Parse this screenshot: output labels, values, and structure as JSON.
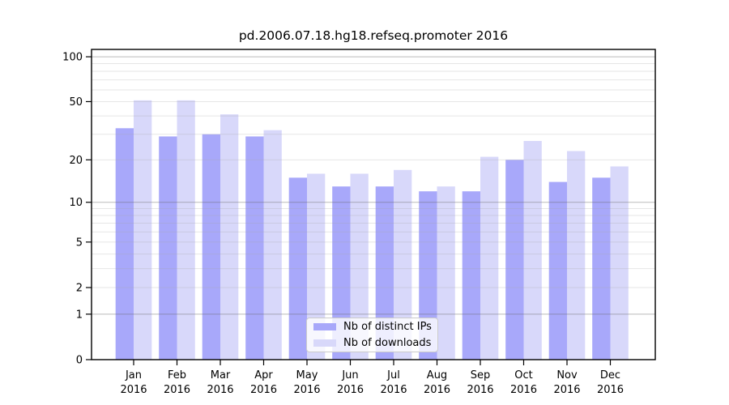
{
  "chart_data": {
    "type": "bar",
    "title": "pd.2006.07.18.hg18.refseq.promoter 2016",
    "x_months": [
      "Jan",
      "Feb",
      "Mar",
      "Apr",
      "May",
      "Jun",
      "Jul",
      "Aug",
      "Sep",
      "Oct",
      "Nov",
      "Dec"
    ],
    "x_year": "2016",
    "categories": [
      "Jan 2016",
      "Feb 2016",
      "Mar 2016",
      "Apr 2016",
      "May 2016",
      "Jun 2016",
      "Jul 2016",
      "Aug 2016",
      "Sep 2016",
      "Oct 2016",
      "Nov 2016",
      "Dec 2016"
    ],
    "series": [
      {
        "name": "Nb of distinct IPs",
        "color": "#a8a8fa",
        "values": [
          33,
          29,
          30,
          29,
          15,
          13,
          13,
          12,
          12,
          20,
          14,
          15
        ]
      },
      {
        "name": "Nb of downloads",
        "color": "#d8d8fa",
        "values": [
          51,
          51,
          41,
          32,
          16,
          16,
          17,
          13,
          21,
          27,
          23,
          18
        ]
      }
    ],
    "y_scale": "log10(1+x)",
    "y_ticks": [
      0,
      1,
      2,
      5,
      10,
      20,
      50,
      100
    ],
    "y_major_gridlines": [
      1,
      10,
      100
    ],
    "y_minor_gridlines": [
      2,
      3,
      4,
      5,
      6,
      7,
      8,
      9,
      20,
      30,
      40,
      50,
      60,
      70,
      80,
      90
    ],
    "ylim": [
      0,
      112
    ],
    "xlabel": "",
    "ylabel": "",
    "grid": "horizontal",
    "legend_position": "lower center"
  }
}
